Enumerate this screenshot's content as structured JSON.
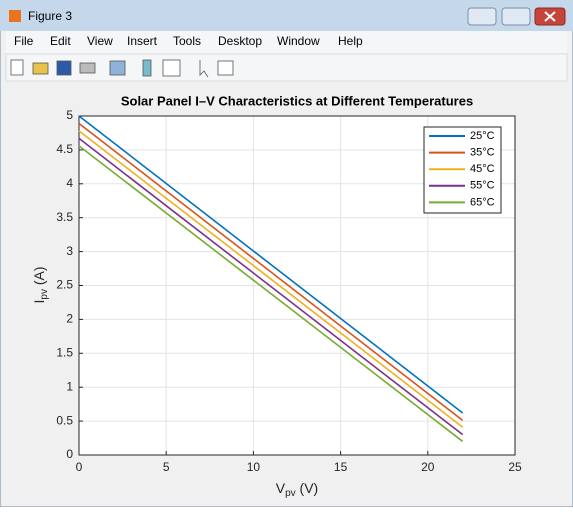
{
  "window": {
    "title": "Figure 3",
    "menu": [
      "File",
      "Edit",
      "View",
      "Insert",
      "Tools",
      "Desktop",
      "Window",
      "Help"
    ]
  },
  "chart_data": {
    "type": "line",
    "title": "Solar Panel I–V Characteristics at Different Temperatures",
    "xlabel": [
      "V",
      "pv",
      " (V)"
    ],
    "ylabel": [
      "I",
      "pv",
      " (A)"
    ],
    "x": [
      0,
      22
    ],
    "series": [
      {
        "name": "25°C",
        "color": "#0072bd",
        "values": [
          5,
          0.62
        ]
      },
      {
        "name": "35°C",
        "color": "#d95319",
        "values": [
          4.89,
          0.51
        ]
      },
      {
        "name": "45°C",
        "color": "#edb120",
        "values": [
          4.78,
          0.41
        ]
      },
      {
        "name": "55°C",
        "color": "#7e2f8e",
        "values": [
          4.67,
          0.3
        ]
      },
      {
        "name": "65°C",
        "color": "#77ac30",
        "values": [
          4.56,
          0.2
        ]
      }
    ],
    "xlim": [
      0,
      25
    ],
    "xticks": [
      0,
      5,
      10,
      15,
      20,
      25
    ],
    "ylim": [
      0,
      5
    ],
    "yticks": [
      0,
      0.5,
      1,
      1.5,
      2,
      2.5,
      3,
      3.5,
      4,
      4.5,
      5
    ],
    "grid": true,
    "legend": "top-right"
  }
}
